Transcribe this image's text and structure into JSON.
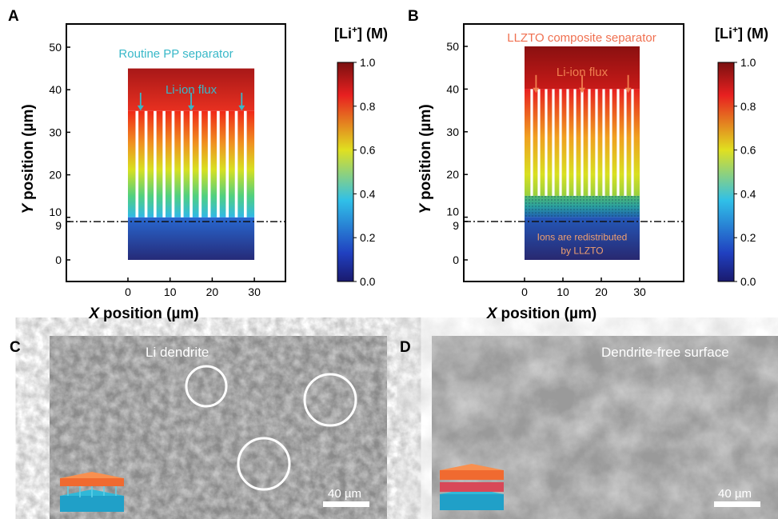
{
  "panels": [
    {
      "label": "A",
      "title": "Routine PP separator",
      "flux_label": "Li-ion flux",
      "x_axis": {
        "var": "X",
        "text": "position (µm)"
      },
      "y_axis": {
        "var": "Y",
        "text": "position (µm)"
      },
      "xticks": [
        0,
        10,
        20,
        30
      ],
      "yticks": [
        0,
        9,
        10,
        20,
        30,
        40,
        50
      ],
      "colorbar": {
        "label": "[Li",
        "sup": "+",
        "tail": "] (M)",
        "ticks": [
          {
            "value": 0,
            "label": "0.0"
          },
          {
            "value": 0.2,
            "label": "0.2"
          },
          {
            "value": 0.4,
            "label": "0.4"
          },
          {
            "value": 0.6,
            "label": "0.6"
          },
          {
            "value": 0.8,
            "label": "0.8"
          },
          {
            "value": 1,
            "label": "1.0"
          }
        ]
      }
    },
    {
      "label": "B",
      "title": "LLZTO composite separator",
      "flux_label": "Li-ion flux",
      "note": [
        "Ions are redistributed",
        "by LLZTO"
      ],
      "x_axis": {
        "var": "X",
        "text": "position (µm)"
      },
      "y_axis": {
        "var": "Y",
        "text": "position (µm)"
      },
      "xticks": [
        0,
        10,
        20,
        30
      ],
      "yticks": [
        0,
        9,
        10,
        20,
        30,
        40,
        50
      ],
      "colorbar": {
        "label": "[Li",
        "sup": "+",
        "tail": "] (M)",
        "ticks": [
          {
            "value": 0,
            "label": "0.0"
          },
          {
            "value": 0.2,
            "label": "0.2"
          },
          {
            "value": 0.4,
            "label": "0.4"
          },
          {
            "value": 0.6,
            "label": "0.6"
          },
          {
            "value": 0.8,
            "label": "0.8"
          },
          {
            "value": 1,
            "label": "1.0"
          }
        ]
      }
    },
    {
      "label": "C",
      "caption": "Li dendrite",
      "scale_bar": "40 µm"
    },
    {
      "label": "D",
      "caption": "Dendrite-free surface",
      "scale_bar": "40 µm"
    }
  ]
}
